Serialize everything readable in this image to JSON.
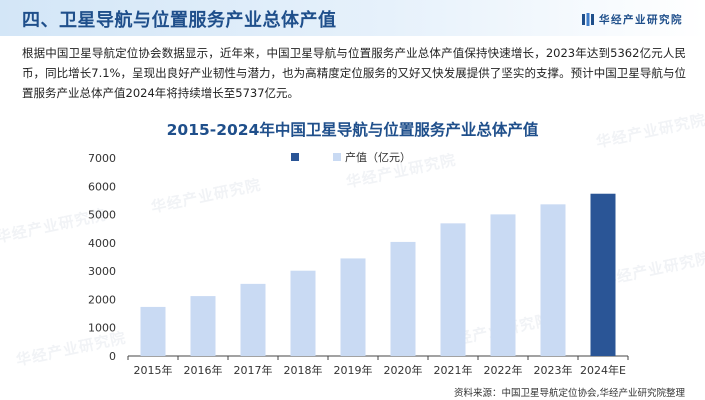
{
  "header": {
    "title": "四、卫星导航与位置服务产业总体产值",
    "brand": "华经产业研究院"
  },
  "paragraph": "根据中国卫星导航定位协会数据显示，近年来，中国卫星导航与位置服务产业总体产值保持快速增长，2023年达到5362亿元人民币，同比增长7.1%，呈现出良好产业韧性与潜力，也为高精度定位服务的又好又快发展提供了坚实的支撑。预计中国卫星导航与位置服务产业总体产值2024年将持续增长至5737亿元。",
  "watermark": "华经产业研究院",
  "source": "资料来源：中国卫星导航定位协会,华经产业研究院整理",
  "colors": {
    "actual": "#c9daf3",
    "forecast": "#2a5596",
    "title": "#1f4f8b"
  },
  "chart_data": {
    "type": "bar",
    "title": "2015-2024年中国卫星导航与位置服务产业总体产值",
    "categories": [
      "2015年",
      "2016年",
      "2017年",
      "2018年",
      "2019年",
      "2020年",
      "2021年",
      "2022年",
      "2023年",
      "2024年E"
    ],
    "series": [
      {
        "name": "产值（亿元）",
        "values": [
          1735,
          2118,
          2550,
          3016,
          3450,
          4033,
          4690,
          5007,
          5362,
          5737
        ]
      }
    ],
    "forecast_index": 9,
    "ylim": [
      0,
      7000
    ],
    "yticks": [
      0,
      1000,
      2000,
      3000,
      4000,
      5000,
      6000,
      7000
    ],
    "xlabel": "",
    "ylabel": "",
    "grid": false,
    "legend_position": "top"
  }
}
